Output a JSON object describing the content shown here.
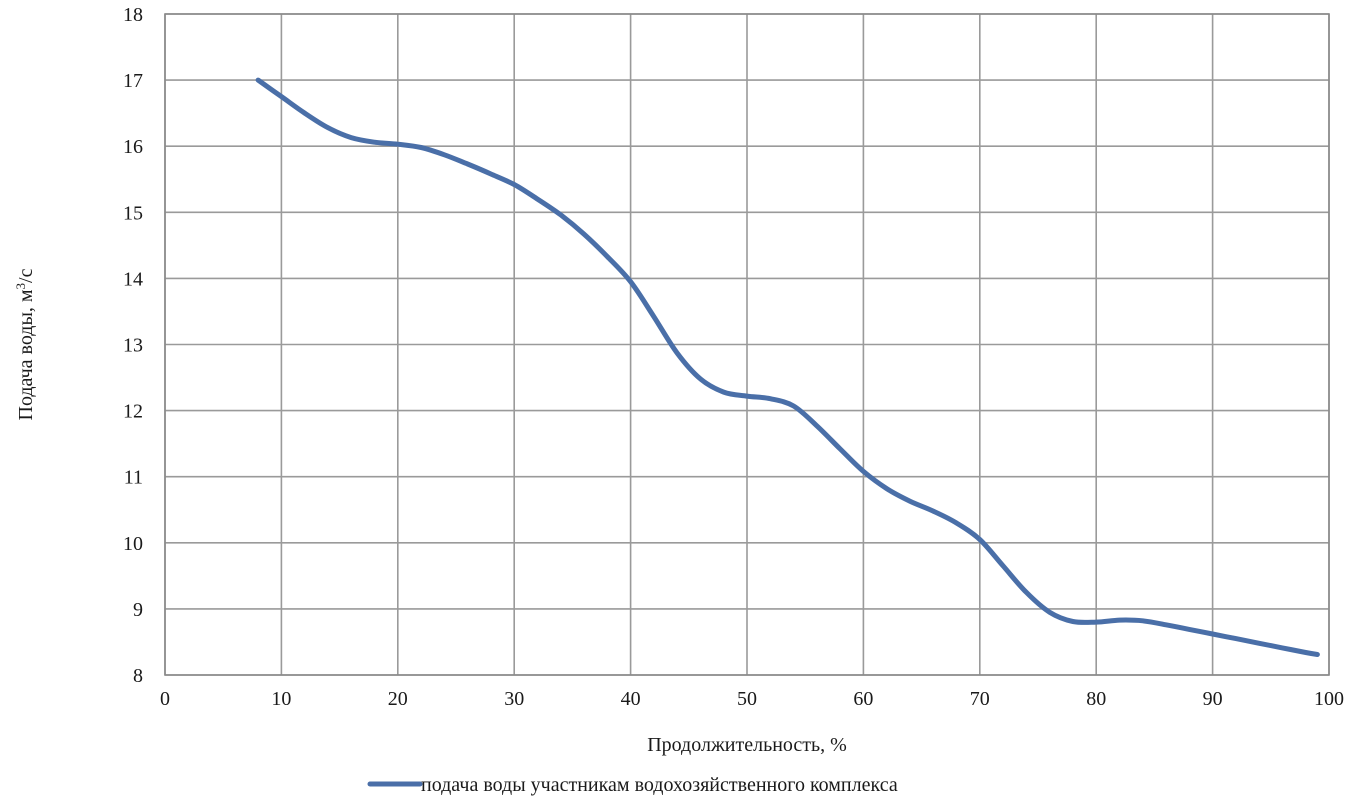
{
  "chart_data": {
    "type": "line",
    "title": "",
    "xlabel": "Продолжительность, %",
    "ylabel_main": "Подача воды,  м",
    "ylabel_sup": "3",
    "ylabel_tail": "/с",
    "xlim": [
      0,
      100
    ],
    "ylim": [
      8,
      18
    ],
    "x_ticks": [
      0,
      10,
      20,
      30,
      40,
      50,
      60,
      70,
      80,
      90,
      100
    ],
    "y_ticks": [
      8,
      9,
      10,
      11,
      12,
      13,
      14,
      15,
      16,
      17,
      18
    ],
    "grid": true,
    "legend_position": "bottom",
    "series": [
      {
        "name": "подача воды участникам водохозяйственного комплекса",
        "color": "#4a6fa8",
        "x": [
          8,
          10,
          12,
          14,
          16,
          18,
          20,
          22,
          24,
          26,
          28,
          30,
          32,
          34,
          36,
          38,
          40,
          42,
          44,
          46,
          48,
          50,
          52,
          54,
          56,
          58,
          60,
          62,
          64,
          66,
          68,
          70,
          72,
          74,
          76,
          78,
          80,
          82,
          84,
          86,
          88,
          90,
          92,
          94,
          96,
          98,
          99
        ],
        "y": [
          17.0,
          16.75,
          16.5,
          16.28,
          16.13,
          16.06,
          16.03,
          15.98,
          15.87,
          15.73,
          15.58,
          15.42,
          15.2,
          14.96,
          14.67,
          14.33,
          13.95,
          13.42,
          12.87,
          12.48,
          12.28,
          12.22,
          12.18,
          12.07,
          11.77,
          11.42,
          11.08,
          10.82,
          10.63,
          10.48,
          10.3,
          10.05,
          9.65,
          9.25,
          8.95,
          8.81,
          8.8,
          8.83,
          8.82,
          8.76,
          8.69,
          8.62,
          8.55,
          8.48,
          8.41,
          8.34,
          8.31
        ]
      }
    ]
  }
}
